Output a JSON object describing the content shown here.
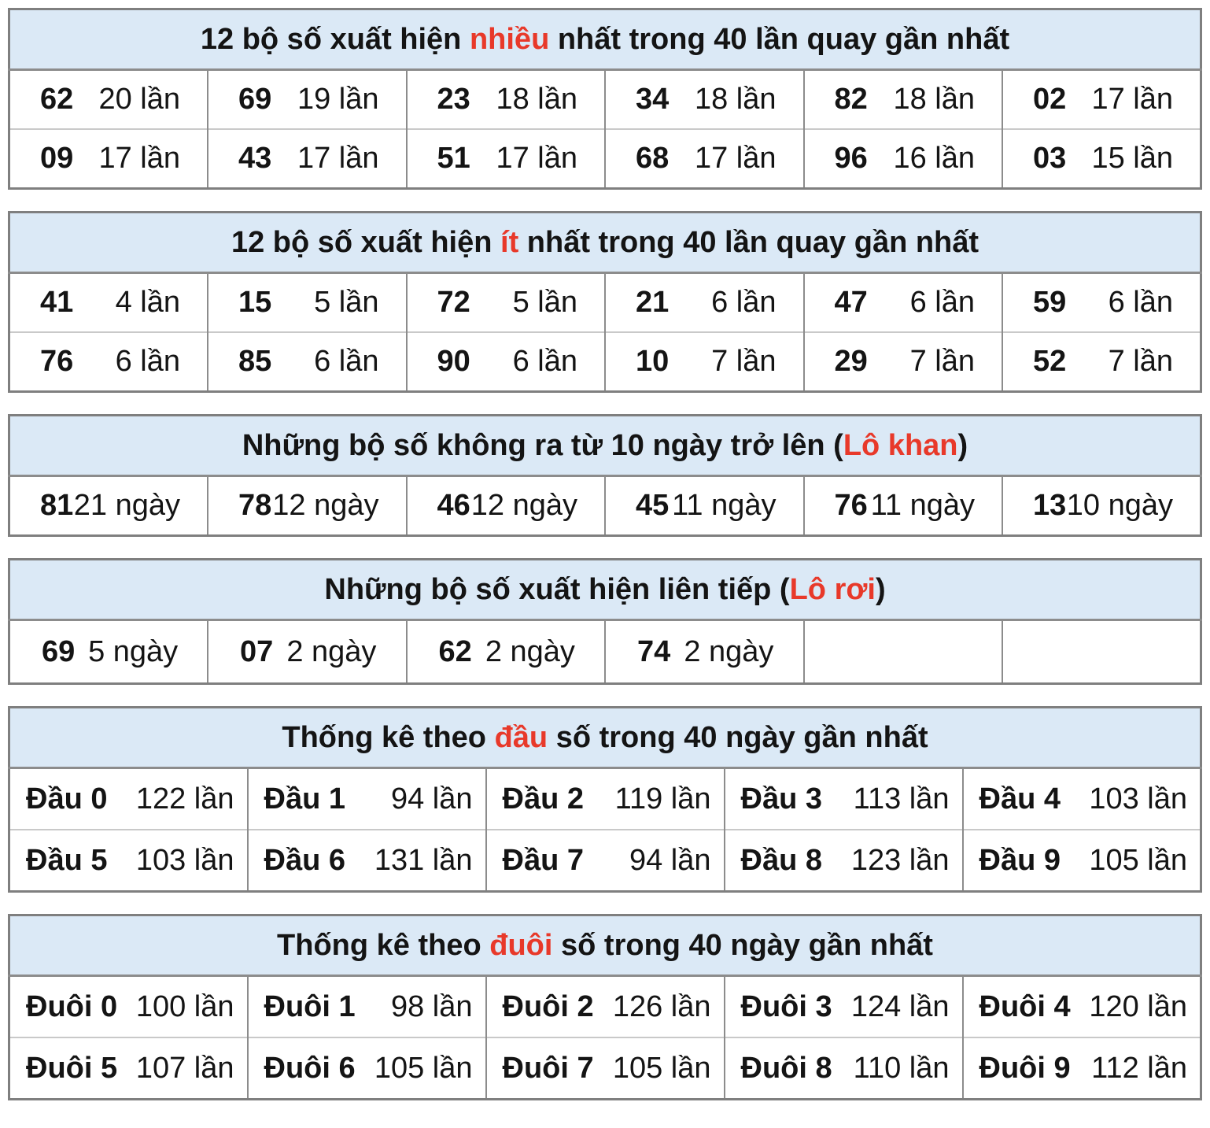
{
  "page": {
    "background": "#ffffff",
    "header_bg": "#dbe9f6",
    "accent_red": "#e8392a",
    "outer_border": "#7f7f7f"
  },
  "tables": [
    {
      "id": "most-frequent",
      "title_segments": [
        {
          "text": "12 bộ số xuất hiện "
        },
        {
          "text": "nhiều",
          "accent": true
        },
        {
          "text": " nhất trong 40 lần quay gần nhất"
        }
      ],
      "value_align": "right",
      "trailing_empty": 0,
      "rows": [
        [
          {
            "num": "62",
            "val": "20 lần"
          },
          {
            "num": "69",
            "val": "19 lần"
          },
          {
            "num": "23",
            "val": "18 lần"
          },
          {
            "num": "34",
            "val": "18 lần"
          },
          {
            "num": "82",
            "val": "18 lần"
          },
          {
            "num": "02",
            "val": "17 lần"
          }
        ],
        [
          {
            "num": "09",
            "val": "17 lần"
          },
          {
            "num": "43",
            "val": "17 lần"
          },
          {
            "num": "51",
            "val": "17 lần"
          },
          {
            "num": "68",
            "val": "17 lần"
          },
          {
            "num": "96",
            "val": "16 lần"
          },
          {
            "num": "03",
            "val": "15 lần"
          }
        ]
      ]
    },
    {
      "id": "least-frequent",
      "title_segments": [
        {
          "text": "12 bộ số xuất hiện "
        },
        {
          "text": "ít",
          "accent": true
        },
        {
          "text": " nhất trong 40 lần quay gần nhất"
        }
      ],
      "value_align": "right",
      "trailing_empty": 0,
      "rows": [
        [
          {
            "num": "41",
            "val": "4 lần"
          },
          {
            "num": "15",
            "val": "5 lần"
          },
          {
            "num": "72",
            "val": "5 lần"
          },
          {
            "num": "21",
            "val": "6 lần"
          },
          {
            "num": "47",
            "val": "6 lần"
          },
          {
            "num": "59",
            "val": "6 lần"
          }
        ],
        [
          {
            "num": "76",
            "val": "6 lần"
          },
          {
            "num": "85",
            "val": "6 lần"
          },
          {
            "num": "90",
            "val": "6 lần"
          },
          {
            "num": "10",
            "val": "7 lần"
          },
          {
            "num": "29",
            "val": "7 lần"
          },
          {
            "num": "52",
            "val": "7 lần"
          }
        ]
      ]
    },
    {
      "id": "lo-khan",
      "title_segments": [
        {
          "text": "Những bộ số không ra từ 10 ngày trở lên ("
        },
        {
          "text": "Lô khan",
          "accent": true
        },
        {
          "text": ")"
        }
      ],
      "value_align": "right",
      "trailing_empty": 0,
      "rows": [
        [
          {
            "num": "81",
            "val": "21 ngày"
          },
          {
            "num": "78",
            "val": "12 ngày"
          },
          {
            "num": "46",
            "val": "12 ngày"
          },
          {
            "num": "45",
            "val": "11 ngày"
          },
          {
            "num": "76",
            "val": "11 ngày"
          },
          {
            "num": "13",
            "val": "10 ngày"
          }
        ]
      ]
    },
    {
      "id": "lo-roi",
      "title_segments": [
        {
          "text": "Những bộ số xuất hiện liên tiếp ("
        },
        {
          "text": "Lô rơi",
          "accent": true
        },
        {
          "text": ")"
        }
      ],
      "value_align": "center",
      "trailing_empty": 2,
      "rows": [
        [
          {
            "num": "69",
            "val": "5 ngày"
          },
          {
            "num": "07",
            "val": "2 ngày"
          },
          {
            "num": "62",
            "val": "2 ngày"
          },
          {
            "num": "74",
            "val": "2 ngày"
          }
        ]
      ]
    },
    {
      "id": "dau-stats",
      "title_segments": [
        {
          "text": "Thống kê theo "
        },
        {
          "text": "đầu",
          "accent": true
        },
        {
          "text": " số trong 40 ngày gần nhất"
        }
      ],
      "value_align": "right",
      "trailing_empty": 0,
      "rows": [
        [
          {
            "num": "Đầu 0",
            "val": "122 lần"
          },
          {
            "num": "Đầu 1",
            "val": "94 lần"
          },
          {
            "num": "Đầu 2",
            "val": "119 lần"
          },
          {
            "num": "Đầu 3",
            "val": "113 lần"
          },
          {
            "num": "Đầu 4",
            "val": "103 lần"
          }
        ],
        [
          {
            "num": "Đầu 5",
            "val": "103 lần"
          },
          {
            "num": "Đầu 6",
            "val": "131 lần"
          },
          {
            "num": "Đầu 7",
            "val": "94 lần"
          },
          {
            "num": "Đầu 8",
            "val": "123 lần"
          },
          {
            "num": "Đầu 9",
            "val": "105 lần"
          }
        ]
      ]
    },
    {
      "id": "duoi-stats",
      "title_segments": [
        {
          "text": "Thống kê theo "
        },
        {
          "text": "đuôi",
          "accent": true
        },
        {
          "text": " số trong 40 ngày gần nhất"
        }
      ],
      "value_align": "right",
      "trailing_empty": 0,
      "rows": [
        [
          {
            "num": "Đuôi 0",
            "val": "100 lần"
          },
          {
            "num": "Đuôi 1",
            "val": "98 lần"
          },
          {
            "num": "Đuôi 2",
            "val": "126 lần"
          },
          {
            "num": "Đuôi 3",
            "val": "124 lần"
          },
          {
            "num": "Đuôi 4",
            "val": "120 lần"
          }
        ],
        [
          {
            "num": "Đuôi 5",
            "val": "107 lần"
          },
          {
            "num": "Đuôi 6",
            "val": "105 lần"
          },
          {
            "num": "Đuôi 7",
            "val": "105 lần"
          },
          {
            "num": "Đuôi 8",
            "val": "110 lần"
          },
          {
            "num": "Đuôi 9",
            "val": "112 lần"
          }
        ]
      ]
    }
  ]
}
